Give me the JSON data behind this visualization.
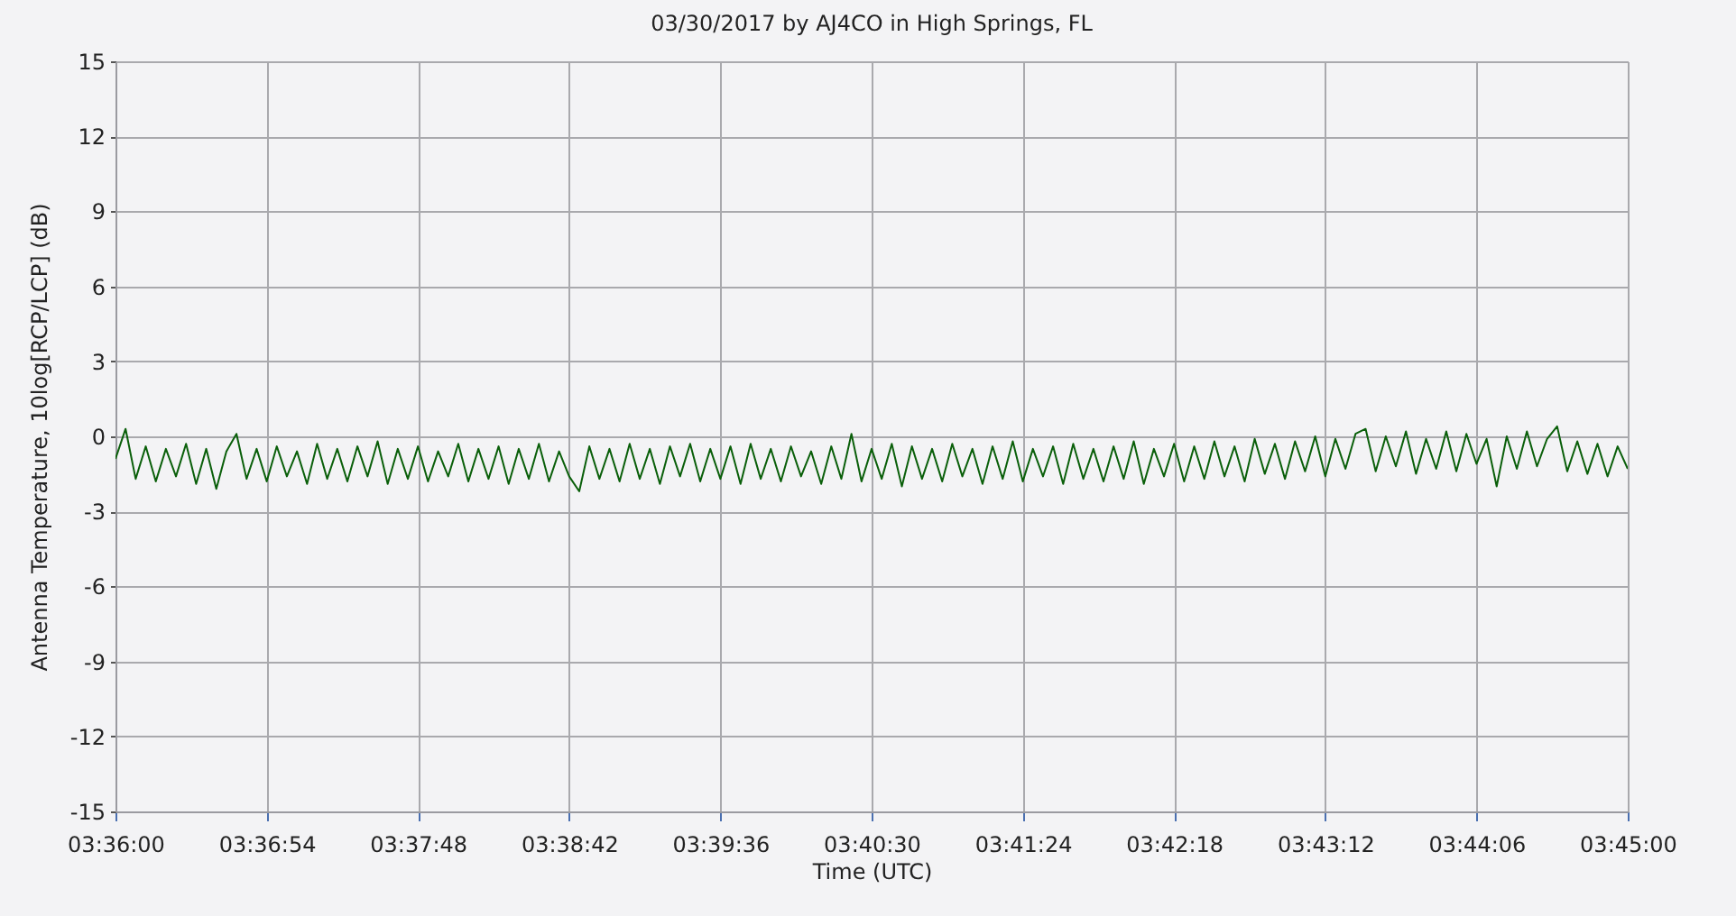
{
  "chart_data": {
    "type": "line",
    "title": "03/30/2017 by AJ4CO in High Springs, FL",
    "xlabel": "Time (UTC)",
    "ylabel": "Antenna Temperature, 10log[RCP/LCP] (dB)",
    "x": [
      3.6,
      3.601,
      3.602,
      3.603,
      3.604,
      3.605,
      3.606,
      3.607,
      3.608,
      3.609,
      3.61,
      3.611,
      3.612,
      3.613,
      3.614,
      3.615,
      3.616,
      3.617,
      3.618,
      3.619,
      3.62,
      3.621,
      3.622,
      3.623,
      3.624,
      3.625,
      3.626,
      3.627,
      3.628,
      3.629,
      3.63,
      3.631,
      3.632,
      3.633,
      3.634,
      3.635,
      3.636,
      3.637,
      3.638,
      3.639,
      3.64,
      3.641,
      3.642,
      3.643,
      3.644,
      3.645,
      3.646,
      3.647,
      3.648,
      3.649,
      3.65,
      3.651,
      3.652,
      3.653,
      3.654,
      3.655,
      3.656,
      3.657,
      3.658,
      3.659,
      3.66,
      3.661,
      3.662,
      3.663,
      3.664,
      3.665,
      3.666,
      3.667,
      3.668,
      3.669,
      3.67,
      3.671,
      3.672,
      3.673,
      3.674,
      3.675,
      3.676,
      3.677,
      3.678,
      3.679,
      3.68,
      3.681,
      3.682,
      3.683,
      3.684,
      3.685,
      3.686,
      3.687,
      3.688,
      3.689,
      3.69,
      3.691,
      3.692,
      3.693,
      3.694,
      3.695,
      3.696,
      3.697,
      3.698,
      3.699,
      3.7,
      3.701,
      3.702,
      3.703,
      3.704,
      3.705,
      3.706,
      3.707,
      3.708,
      3.709,
      3.71,
      3.711,
      3.712,
      3.713,
      3.714,
      3.715,
      3.716,
      3.717,
      3.718,
      3.719,
      3.72,
      3.721,
      3.722,
      3.723,
      3.724,
      3.725,
      3.726,
      3.727,
      3.728,
      3.729,
      3.73,
      3.731,
      3.732,
      3.733,
      3.734,
      3.735,
      3.736,
      3.737,
      3.738,
      3.739,
      3.74,
      3.741,
      3.742,
      3.743,
      3.744,
      3.745,
      3.746,
      3.747,
      3.748,
      3.749,
      3.75
    ],
    "values": [
      -0.9,
      0.3,
      -1.7,
      -0.4,
      -1.8,
      -0.5,
      -1.6,
      -0.3,
      -1.9,
      -0.5,
      -2.1,
      -0.6,
      0.1,
      -1.7,
      -0.5,
      -1.8,
      -0.4,
      -1.6,
      -0.6,
      -1.9,
      -0.3,
      -1.7,
      -0.5,
      -1.8,
      -0.4,
      -1.6,
      -0.2,
      -1.9,
      -0.5,
      -1.7,
      -0.4,
      -1.8,
      -0.6,
      -1.6,
      -0.3,
      -1.8,
      -0.5,
      -1.7,
      -0.4,
      -1.9,
      -0.5,
      -1.7,
      -0.3,
      -1.8,
      -0.6,
      -1.6,
      -2.2,
      -0.4,
      -1.7,
      -0.5,
      -1.8,
      -0.3,
      -1.7,
      -0.5,
      -1.9,
      -0.4,
      -1.6,
      -0.3,
      -1.8,
      -0.5,
      -1.7,
      -0.4,
      -1.9,
      -0.3,
      -1.7,
      -0.5,
      -1.8,
      -0.4,
      -1.6,
      -0.6,
      -1.9,
      -0.4,
      -1.7,
      0.1,
      -1.8,
      -0.5,
      -1.7,
      -0.3,
      -2.0,
      -0.4,
      -1.7,
      -0.5,
      -1.8,
      -0.3,
      -1.6,
      -0.5,
      -1.9,
      -0.4,
      -1.7,
      -0.2,
      -1.8,
      -0.5,
      -1.6,
      -0.4,
      -1.9,
      -0.3,
      -1.7,
      -0.5,
      -1.8,
      -0.4,
      -1.7,
      -0.2,
      -1.9,
      -0.5,
      -1.6,
      -0.3,
      -1.8,
      -0.4,
      -1.7,
      -0.2,
      -1.6,
      -0.4,
      -1.8,
      -0.1,
      -1.5,
      -0.3,
      -1.7,
      -0.2,
      -1.4,
      0.0,
      -1.6,
      -0.1,
      -1.3,
      0.1,
      0.3,
      -1.4,
      0.0,
      -1.2,
      0.2,
      -1.5,
      -0.1,
      -1.3,
      0.2,
      -1.4,
      0.1,
      -1.1,
      -0.1,
      -2.0,
      0.0,
      -1.3,
      0.2,
      -1.2,
      -0.1,
      0.4,
      -1.4,
      -0.2,
      -1.5,
      -0.3,
      -1.6,
      -0.4,
      -1.3
    ],
    "color": "#0a5f0a",
    "xlim": [
      3.6,
      3.75
    ],
    "xticks": [
      {
        "value": 3.6,
        "label": "03:36:00"
      },
      {
        "value": 3.615,
        "label": "03:36:54"
      },
      {
        "value": 3.63,
        "label": "03:37:48"
      },
      {
        "value": 3.645,
        "label": "03:38:42"
      },
      {
        "value": 3.66,
        "label": "03:39:36"
      },
      {
        "value": 3.675,
        "label": "03:40:30"
      },
      {
        "value": 3.69,
        "label": "03:41:24"
      },
      {
        "value": 3.705,
        "label": "03:42:18"
      },
      {
        "value": 3.72,
        "label": "03:43:12"
      },
      {
        "value": 3.735,
        "label": "03:44:06"
      },
      {
        "value": 3.75,
        "label": "03:45:00"
      }
    ],
    "ylim": [
      -15,
      15
    ],
    "yticks": [
      -15,
      -12,
      -9,
      -6,
      -3,
      0,
      3,
      6,
      9,
      12,
      15
    ],
    "grid": true
  }
}
